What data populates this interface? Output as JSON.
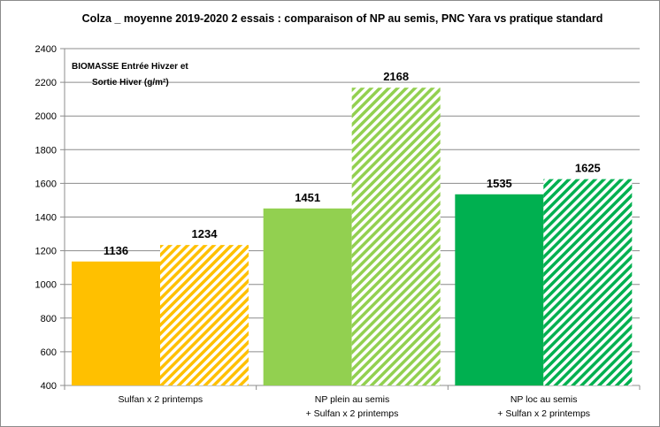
{
  "chart_data": {
    "type": "bar",
    "title": "Colza _ moyenne  2019-2020  2 essais :   comparaison  of NP au semis, PNC Yara  vs pratique standard",
    "annotation": [
      "BIOMASSE Entrée Hivzer et",
      "Sortie Hiver (g/m²)"
    ],
    "categories": [
      [
        "Sulfan x 2  printemps"
      ],
      [
        "NP plein au semis",
        "+ Sulfan x 2 printemps"
      ],
      [
        "NP loc au semis",
        "+  Sulfan x 2  printemps"
      ]
    ],
    "series": [
      {
        "name": "Entrée Hiver",
        "style": "solid",
        "values": [
          1136,
          1451,
          1535
        ]
      },
      {
        "name": "Sortie Hiver",
        "style": "hatched",
        "values": [
          1234,
          2168,
          1625
        ]
      }
    ],
    "colors": [
      "#ffc000",
      "#92d050",
      "#00b050"
    ],
    "ylim": [
      400,
      2400
    ],
    "yticks": [
      400,
      600,
      800,
      1000,
      1200,
      1400,
      1600,
      1800,
      2000,
      2200,
      2400
    ],
    "grid": true,
    "xlabel": "",
    "ylabel": ""
  }
}
